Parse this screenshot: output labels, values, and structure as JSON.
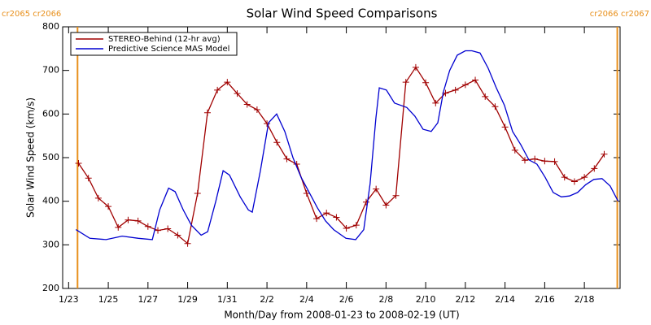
{
  "chart_data": {
    "type": "line",
    "title": "Solar Wind Speed Comparisons",
    "x_label": "Month/Day from 2008-01-23 to 2008-02-19 (UT)",
    "y_label": "Solar Wind Speed (km/s)",
    "xlim": [
      -0.3,
      27.8
    ],
    "ylim": [
      200,
      800
    ],
    "xticks": [
      {
        "value": 0,
        "label": "1/23"
      },
      {
        "value": 2,
        "label": "1/25"
      },
      {
        "value": 4,
        "label": "1/27"
      },
      {
        "value": 6,
        "label": "1/29"
      },
      {
        "value": 8,
        "label": "1/31"
      },
      {
        "value": 10,
        "label": "2/2"
      },
      {
        "value": 12,
        "label": "2/4"
      },
      {
        "value": 14,
        "label": "2/6"
      },
      {
        "value": 16,
        "label": "2/8"
      },
      {
        "value": 18,
        "label": "2/10"
      },
      {
        "value": 20,
        "label": "2/12"
      },
      {
        "value": 22,
        "label": "2/14"
      },
      {
        "value": 24,
        "label": "2/16"
      },
      {
        "value": 26,
        "label": "2/18"
      }
    ],
    "yticks": [
      200,
      300,
      400,
      500,
      600,
      700,
      800
    ],
    "legend": "upper left",
    "markers": [
      {
        "x": 0.45,
        "label": "cr2065 cr2066",
        "color": "#e8901c"
      },
      {
        "x": 27.66,
        "label": "cr2066 cr2067",
        "color": "#e8901c"
      }
    ],
    "series": [
      {
        "name": "STEREO-Behind (12-hr avg)",
        "color": "#a00000",
        "marker": "+",
        "x": [
          0.5,
          1,
          1.5,
          2,
          2.5,
          3,
          3.5,
          4,
          4.5,
          5,
          5.5,
          6,
          6.5,
          7,
          7.5,
          8,
          8.5,
          9,
          9.5,
          10,
          10.5,
          11,
          11.5,
          12,
          12.5,
          13,
          13.5,
          14,
          14.5,
          15,
          15.5,
          16,
          16.5,
          17,
          17.5,
          18,
          18.5,
          19,
          19.5,
          20,
          20.5,
          21,
          21.5,
          22,
          22.5,
          23,
          23.5,
          24,
          24.5,
          25,
          25.5,
          26,
          26.5,
          27
        ],
        "values": [
          487,
          453,
          407,
          388,
          340,
          357,
          355,
          342,
          333,
          337,
          322,
          303,
          418,
          603,
          655,
          673,
          647,
          622,
          610,
          578,
          535,
          497,
          485,
          418,
          360,
          373,
          363,
          338,
          345,
          398,
          428,
          391,
          413,
          673,
          707,
          672,
          625,
          648,
          655,
          667,
          678,
          640,
          617,
          570,
          517,
          494,
          497,
          492,
          491,
          455,
          445,
          455,
          475,
          508
        ]
      },
      {
        "name": "Predictive Science MAS Model",
        "color": "#0000d0",
        "x": [
          0.37,
          1.07,
          1.89,
          2.7,
          3.52,
          4.22,
          4.59,
          5.04,
          5.37,
          5.78,
          6.19,
          6.68,
          7.01,
          7.42,
          7.79,
          8.11,
          8.65,
          9.06,
          9.26,
          9.67,
          10.08,
          10.49,
          10.9,
          11.31,
          11.72,
          12.13,
          12.54,
          12.95,
          13.36,
          13.98,
          14.47,
          14.88,
          15.2,
          15.49,
          15.66,
          16.02,
          16.43,
          17.05,
          17.46,
          17.87,
          18.28,
          18.61,
          18.89,
          19.21,
          19.59,
          20,
          20.33,
          20.74,
          21.15,
          21.56,
          21.97,
          22.38,
          22.79,
          23.2,
          23.61,
          24.02,
          24.43,
          24.84,
          25.25,
          25.66,
          26.07,
          26.48,
          26.89,
          27.3,
          27.7
        ],
        "values": [
          335,
          315,
          312,
          320,
          315,
          312,
          380,
          430,
          422,
          380,
          345,
          322,
          330,
          400,
          470,
          460,
          410,
          380,
          375,
          470,
          580,
          600,
          560,
          500,
          455,
          420,
          385,
          355,
          335,
          315,
          312,
          335,
          440,
          590,
          660,
          655,
          625,
          615,
          595,
          565,
          560,
          580,
          650,
          700,
          735,
          745,
          745,
          740,
          705,
          660,
          620,
          560,
          530,
          495,
          485,
          455,
          420,
          410,
          412,
          420,
          438,
          450,
          452,
          435,
          400
        ]
      }
    ]
  }
}
